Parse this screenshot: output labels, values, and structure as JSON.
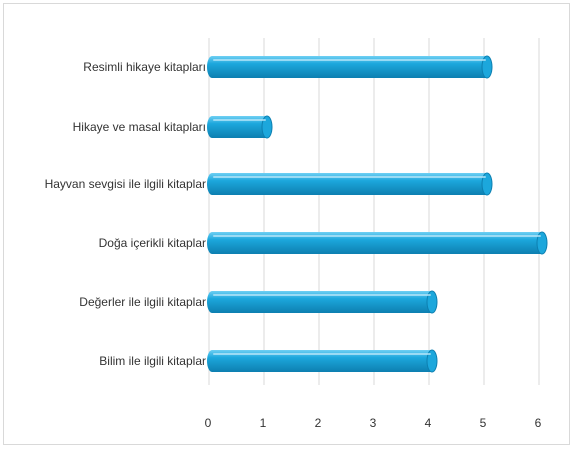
{
  "chart_data": {
    "type": "bar",
    "orientation": "horizontal",
    "categories": [
      "Resimli hikaye kitapları",
      "Hikaye ve masal kitapları",
      "Hayvan sevgisi ile ilgili kitaplar",
      "Doğa içerikli kitaplar",
      "Değerler ile ilgili kitaplar",
      "Bilim ile ilgili kitaplar"
    ],
    "values": [
      5,
      1,
      5,
      6,
      4,
      4
    ],
    "ticks": [
      "0",
      "1",
      "2",
      "3",
      "4",
      "5",
      "6"
    ],
    "xlim": [
      0,
      6
    ],
    "grid": true,
    "legend": "none",
    "colors": {
      "bar": "#1ca7dc",
      "bar_light": "#6fd0f3",
      "bar_dark": "#0d7fb0",
      "grid": "#d9d9d9"
    }
  }
}
